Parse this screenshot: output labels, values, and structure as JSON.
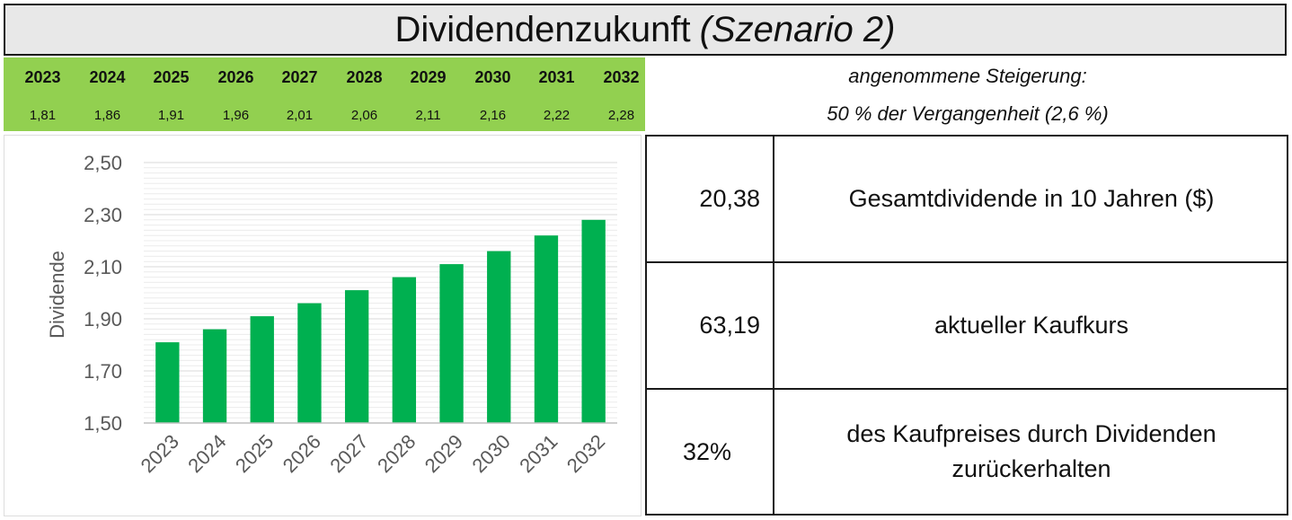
{
  "header": {
    "title_main": "Dividendenzukunft",
    "title_scenario": "(Szenario 2)"
  },
  "years": [
    "2023",
    "2024",
    "2025",
    "2026",
    "2027",
    "2028",
    "2029",
    "2030",
    "2031",
    "2032"
  ],
  "dividends": [
    "1,81",
    "1,86",
    "1,91",
    "1,96",
    "2,01",
    "2,06",
    "2,11",
    "2,16",
    "2,22",
    "2,28"
  ],
  "assumption": {
    "line1": "angenommene Steigerung:",
    "line2": "50 % der Vergangenheit (2,6 %)"
  },
  "summary": {
    "total_value": "20,38",
    "total_label": "Gesamtdividende in 10 Jahren ($)",
    "price_value": "63,19",
    "price_label": "aktueller Kaufkurs",
    "pct_value": "32%",
    "pct_label": "des Kaufpreises durch Dividenden zurückerhalten"
  },
  "colors": {
    "bar": "#00b050",
    "header_bg": "#92d050",
    "title_bg": "#e8e8e8"
  },
  "chart_data": {
    "type": "bar",
    "categories": [
      "2023",
      "2024",
      "2025",
      "2026",
      "2027",
      "2028",
      "2029",
      "2030",
      "2031",
      "2032"
    ],
    "values": [
      1.81,
      1.86,
      1.91,
      1.96,
      2.01,
      2.06,
      2.11,
      2.16,
      2.22,
      2.28
    ],
    "ylabel": "Dividende",
    "xlabel": "",
    "ylim": [
      1.5,
      2.5
    ],
    "yticks": [
      "1,50",
      "1,70",
      "1,90",
      "2,10",
      "2,30",
      "2,50"
    ],
    "ytick_values": [
      1.5,
      1.7,
      1.9,
      2.1,
      2.3,
      2.5
    ],
    "minor_grid": true,
    "legend": "none"
  }
}
